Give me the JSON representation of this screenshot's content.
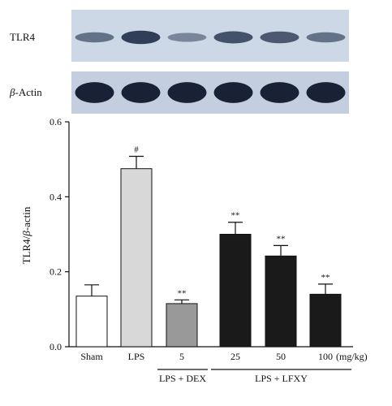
{
  "blot": {
    "bands": [
      {
        "label": "TLR4",
        "intensities": [
          0.45,
          0.85,
          0.3,
          0.7,
          0.65,
          0.45
        ],
        "background": "#cdd8e6",
        "band_color": "#1c2a45"
      },
      {
        "label_prefix": "β",
        "label_suffix": "-Actin",
        "intensities": [
          0.95,
          0.95,
          0.95,
          0.95,
          0.95,
          0.95
        ],
        "background": "#c3cfdf",
        "band_color": "#111a2e"
      }
    ]
  },
  "chart_data": {
    "type": "bar",
    "categories": [
      "Sham",
      "LPS",
      "5",
      "25",
      "50",
      "100"
    ],
    "unit_label": "(mg/kg)",
    "values": [
      0.135,
      0.475,
      0.115,
      0.3,
      0.242,
      0.14
    ],
    "errors": [
      0.03,
      0.033,
      0.01,
      0.032,
      0.028,
      0.027
    ],
    "significance": [
      "",
      "#",
      "**",
      "**",
      "**",
      "**"
    ],
    "bar_colors": [
      "#ffffff",
      "#d8d8d8",
      "#999999",
      "#1a1a1a",
      "#1a1a1a",
      "#1a1a1a"
    ],
    "ylabel_prefix": "TLR4/",
    "ylabel_italic": "β",
    "ylabel_suffix": "-actin",
    "ylim": [
      0,
      0.6
    ],
    "yticks": [
      "0.0",
      "0.2",
      "0.4",
      "0.6"
    ],
    "ytick_values": [
      0,
      0.2,
      0.4,
      0.6
    ],
    "groups": [
      {
        "label": "LPS + DEX",
        "from": 2,
        "to": 2
      },
      {
        "label": "LPS + LFXY",
        "from": 3,
        "to": 5
      }
    ]
  }
}
